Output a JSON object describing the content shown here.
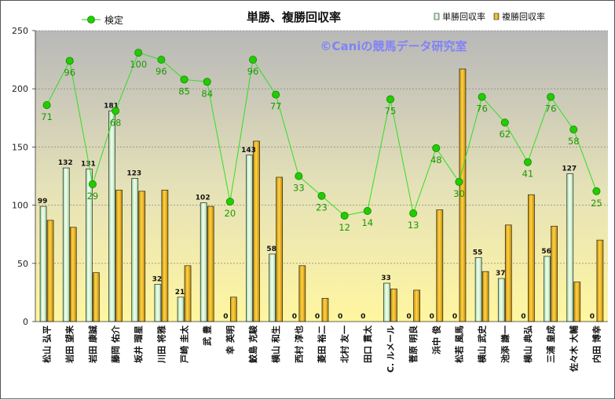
{
  "chart_data": {
    "type": "bar",
    "title": "単勝、複勝回収率",
    "watermark": "©Caniの競馬データ研究室",
    "ylim": [
      0,
      250
    ],
    "yticks": [
      0,
      50,
      100,
      150,
      200,
      250
    ],
    "grid": true,
    "legend_position": "top",
    "categories": [
      "松山 弘平",
      "岩田 望来",
      "岩田 康誠",
      "藤岡 佑介",
      "坂井 瑠星",
      "川田 将雅",
      "戸崎 圭太",
      "武 豊",
      "幸 英明",
      "鮫島 克駿",
      "横山 和生",
      "西村 淳也",
      "菱田 裕二",
      "北村 友一",
      "田口 貫太",
      "C. ルメール",
      "菅原 明良",
      "浜中 俊",
      "松若 風馬",
      "横山 武史",
      "池添 謙一",
      "横山 典弘",
      "三浦 皇成",
      "佐々木 大輔",
      "内田 博幸"
    ],
    "series": [
      {
        "name": "単勝回収率",
        "kind": "bar",
        "color": "#c8f0c8",
        "values": [
          99,
          132,
          131,
          181,
          123,
          32,
          21,
          102,
          0,
          143,
          58,
          0,
          0,
          0,
          0,
          33,
          0,
          0,
          0,
          55,
          37,
          0,
          56,
          127,
          0
        ]
      },
      {
        "name": "複勝回収率",
        "kind": "bar",
        "color": "#e8b000",
        "values": [
          87,
          81,
          42,
          113,
          112,
          113,
          48,
          99,
          21,
          155,
          124,
          48,
          20,
          0,
          0,
          28,
          27,
          96,
          217,
          43,
          83,
          109,
          82,
          34,
          70
        ]
      },
      {
        "name": "検定",
        "kind": "line",
        "color": "#22cc00",
        "y": [
          186,
          224,
          118,
          181,
          231,
          225,
          208,
          206,
          103,
          225,
          195,
          125,
          108,
          91,
          95,
          191,
          93,
          149,
          120,
          193,
          171,
          137,
          193,
          165,
          112
        ],
        "labels": [
          71,
          96,
          29,
          68,
          100,
          96,
          85,
          84,
          20,
          96,
          77,
          33,
          23,
          12,
          14,
          75,
          13,
          48,
          30,
          76,
          62,
          41,
          76,
          58,
          25
        ]
      }
    ]
  }
}
